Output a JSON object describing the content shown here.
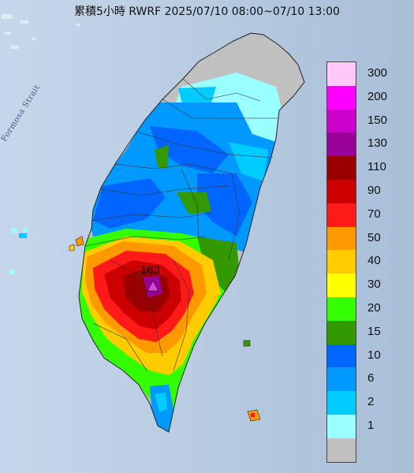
{
  "title": "累積5小時 RWRF 2025/07/10 08:00~07/10 13:00",
  "sea_label": "Formosa Strait",
  "peak": {
    "value": "163",
    "marker_color": "#e040e0"
  },
  "legend": [
    {
      "label": "300",
      "color": "#ffc8f8"
    },
    {
      "label": "200",
      "color": "#ff00ff"
    },
    {
      "label": "150",
      "color": "#cc00cc"
    },
    {
      "label": "130",
      "color": "#990099"
    },
    {
      "label": "110",
      "color": "#990000"
    },
    {
      "label": "90",
      "color": "#cc0000"
    },
    {
      "label": "70",
      "color": "#ff1a1a"
    },
    {
      "label": "50",
      "color": "#ff9900"
    },
    {
      "label": "40",
      "color": "#ffcc00"
    },
    {
      "label": "30",
      "color": "#ffff00"
    },
    {
      "label": "20",
      "color": "#33ff00"
    },
    {
      "label": "15",
      "color": "#339900"
    },
    {
      "label": "10",
      "color": "#0066ff"
    },
    {
      "label": "6",
      "color": "#0099ff"
    },
    {
      "label": "2",
      "color": "#00ccff"
    },
    {
      "label": "1",
      "color": "#99ffff"
    },
    {
      "label": "",
      "color": "#c0c0c0"
    }
  ]
}
